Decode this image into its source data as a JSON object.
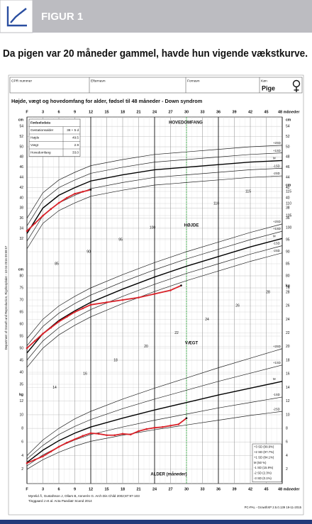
{
  "header": {
    "label": "FIGUR 1",
    "caption": "Da pigen var 20 måneder gammel, havde hun vigende vækstkurve."
  },
  "form": {
    "fields": [
      "CPR nummer",
      "Efternavn",
      "Fornavn",
      "Køn"
    ],
    "sex": "Pige",
    "title": "Højde, vægt og hovedomfang for alder, fødsel til 48 måneder  - Down syndrom"
  },
  "birth_data": {
    "title": "Fødselsdata",
    "rows": [
      [
        "Gestationsalder",
        "38 + 5 d"
      ],
      [
        "Højde",
        "49.5"
      ],
      [
        "Vægt",
        "2.9"
      ],
      [
        "Hovedomfang",
        "33.0"
      ]
    ]
  },
  "chart_data": {
    "type": "line",
    "x_label": "ALDER (måneder)",
    "xlim": [
      0,
      48
    ],
    "xticks": [
      {
        "value": 0,
        "label": "F"
      },
      3,
      6,
      9,
      12,
      15,
      18,
      21,
      24,
      27,
      30,
      33,
      36,
      39,
      42,
      45,
      {
        "value": 48,
        "label": "48 måneder"
      }
    ],
    "highlight_x": 30,
    "highlight_color": "#3cb44b",
    "panels": [
      {
        "title": "HOVEDOMFANG",
        "unit": "cm",
        "ylim": [
          30,
          55
        ],
        "left_ticks": [
          32,
          34,
          36,
          38,
          40,
          42,
          44,
          46,
          48,
          50,
          52,
          54
        ],
        "right_ticks": [
          36,
          38,
          40,
          42,
          44,
          46,
          48,
          50,
          52,
          54
        ],
        "grid_labels": [],
        "x": [
          0,
          3,
          6,
          9,
          12,
          18,
          24,
          30,
          36,
          42,
          48
        ],
        "series": [
          {
            "name": "+2SD",
            "color": "#222222",
            "values": [
              36,
              41,
              43.5,
              45,
              46.3,
              47.5,
              48.5,
              49,
              49.5,
              50,
              50.3
            ]
          },
          {
            "name": "+1SD",
            "color": "#222222",
            "values": [
              34.5,
              39.5,
              42,
              43.5,
              44.8,
              46,
              47,
              47.5,
              48,
              48.5,
              48.8
            ]
          },
          {
            "name": "M",
            "color": "#000000",
            "values": [
              33,
              38,
              40.5,
              42,
              43.3,
              44.5,
              45.5,
              46,
              46.5,
              47,
              47.3
            ]
          },
          {
            "name": "-1SD",
            "color": "#222222",
            "values": [
              31.5,
              36.5,
              39,
              40.5,
              41.8,
              43,
              44,
              44.5,
              45,
              45.5,
              45.8
            ]
          },
          {
            "name": "-2SD",
            "color": "#222222",
            "values": [
              30,
              35,
              37.5,
              39,
              40.3,
              41.5,
              42.5,
              43,
              43.5,
              44,
              44.3
            ]
          }
        ],
        "patient": {
          "color": "#d9232a",
          "x": [
            0,
            1.5,
            3,
            4.5,
            6,
            7.5,
            9,
            10.5,
            12
          ],
          "values": [
            33.5,
            35,
            36.5,
            37.8,
            39,
            40,
            40.8,
            41.2,
            41.6
          ]
        }
      },
      {
        "title": "HØJDE",
        "unit": "cm",
        "ylim": [
          35,
          120
        ],
        "left_ticks": [
          35,
          40,
          45,
          50,
          55,
          60,
          65,
          70,
          75,
          80
        ],
        "right_ticks": [
          75,
          80,
          85,
          90,
          95,
          100,
          105,
          110,
          115
        ],
        "grid_labels": [
          85,
          90,
          95,
          100,
          110,
          115
        ],
        "x": [
          0,
          3,
          6,
          9,
          12,
          18,
          24,
          30,
          36,
          42,
          48
        ],
        "series": [
          {
            "name": "+2SD",
            "color": "#222222",
            "values": [
              54,
              62,
              67.5,
              71.5,
              75,
              80.5,
              85.5,
              90,
              94,
              98,
              101.5
            ]
          },
          {
            "name": "+1SD",
            "color": "#222222",
            "values": [
              51,
              59,
              64.5,
              68.5,
              72,
              77.5,
              82.5,
              87,
              91,
              95,
              98.5
            ]
          },
          {
            "name": "M",
            "color": "#000000",
            "values": [
              48,
              56,
              61.5,
              65.5,
              69,
              74.5,
              79.5,
              84,
              88,
              92,
              95.5
            ]
          },
          {
            "name": "-1SD",
            "color": "#222222",
            "values": [
              45,
              53,
              58.5,
              62.5,
              66,
              71.5,
              76.5,
              81,
              85,
              89,
              92.5
            ]
          },
          {
            "name": "-2SD",
            "color": "#222222",
            "values": [
              42,
              50,
              55.5,
              59.5,
              63,
              68.5,
              73.5,
              78,
              82,
              86,
              89.5
            ]
          }
        ],
        "patient": {
          "color": "#d9232a",
          "x": [
            0,
            1.5,
            3,
            4.5,
            6,
            7.5,
            9,
            10.5,
            12,
            15,
            18,
            21,
            24,
            27,
            29
          ],
          "values": [
            50,
            53,
            56,
            58.5,
            61,
            63,
            65,
            66.5,
            68,
            69,
            70,
            71,
            72.5,
            74,
            76
          ]
        }
      },
      {
        "title": "VÆGT",
        "unit": "kg",
        "ylim": [
          0,
          28
        ],
        "left_ticks": [
          2,
          4,
          6,
          8,
          10,
          12
        ],
        "right_ticks": [
          2,
          4,
          6,
          8,
          10,
          12,
          14,
          16,
          18,
          20,
          22,
          24,
          26,
          28
        ],
        "grid_labels": [
          14,
          16,
          18,
          20,
          22,
          24,
          26,
          28
        ],
        "x": [
          0,
          3,
          6,
          9,
          12,
          18,
          24,
          30,
          36,
          42,
          48
        ],
        "series": [
          {
            "name": "+2SD",
            "color": "#222222",
            "values": [
              4,
              6.3,
              8,
              9.4,
              10.5,
              12.3,
              13.9,
              15.4,
              16.9,
              18.3,
              19.7
            ]
          },
          {
            "name": "+1SD",
            "color": "#222222",
            "values": [
              3.5,
              5.5,
              7.1,
              8.3,
              9.3,
              10.9,
              12.3,
              13.6,
              14.9,
              16.1,
              17.3
            ]
          },
          {
            "name": "M",
            "color": "#000000",
            "values": [
              3,
              4.8,
              6.2,
              7.3,
              8.2,
              9.5,
              10.7,
              11.8,
              12.9,
              13.9,
              14.9
            ]
          },
          {
            "name": "-1SD",
            "color": "#222222",
            "values": [
              2.5,
              4.1,
              5.3,
              6.3,
              7.1,
              8.2,
              9.2,
              10.1,
              11,
              11.8,
              12.6
            ]
          },
          {
            "name": "-2SD",
            "color": "#222222",
            "values": [
              2,
              3.4,
              4.5,
              5.4,
              6.1,
              7,
              7.8,
              8.5,
              9.2,
              9.9,
              10.5
            ]
          }
        ],
        "patient": {
          "color": "#d9232a",
          "x": [
            0,
            1.5,
            3,
            4.5,
            6,
            7.5,
            9,
            10.5,
            12,
            13.5,
            15,
            16.5,
            18,
            19.5,
            21,
            22.5,
            24,
            25.5,
            27,
            28.5,
            30
          ],
          "values": [
            2.9,
            3.4,
            3.9,
            4.6,
            5.3,
            5.9,
            6.4,
            6.9,
            7.3,
            7.2,
            7,
            7,
            7.2,
            7.1,
            7.6,
            7.9,
            8.1,
            8.2,
            8.4,
            8.6,
            9.5
          ]
        }
      }
    ],
    "sd_legend": [
      "+3 SD (99.9%)",
      "+2 SD (97.7%)",
      "+1 SD (84.1%)",
      "M (50 %)",
      "-1 SD (15.9%)",
      "-2 SD (2.3%)",
      "-3 SD (0.1%)"
    ]
  },
  "footer": {
    "references": [
      "Myrelid Å, Gustafsson J, Ollars B, Annerén G. Arch Dis Child 2002;87:97-103",
      "Tinggaard J et al. Acta Paediatr Scand 2014"
    ],
    "software": "PC-PAL - GrowthXP 2.5.0.139  19-11-2015",
    "department": "Department of Growth and Reproduction, Rigshospitalet - 10-04-2016 09:59:57"
  }
}
